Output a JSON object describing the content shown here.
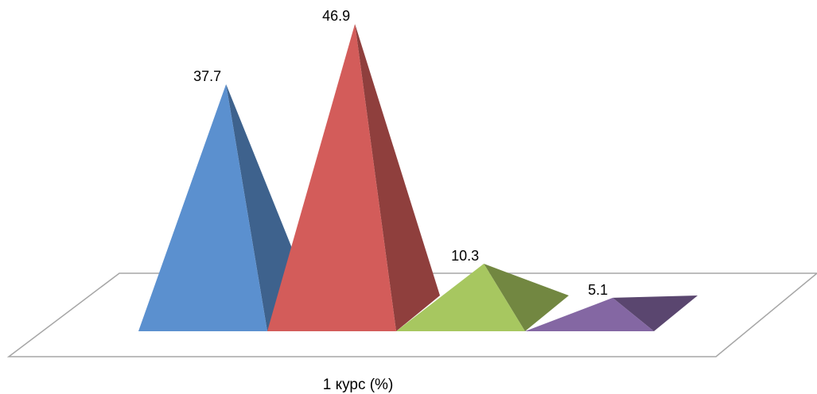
{
  "chart_data": {
    "type": "bar",
    "shape": "3d-pyramid",
    "categories": [
      "1 курс (%)"
    ],
    "series": [
      {
        "values": [
          37.7
        ],
        "color": "#5B90CF"
      },
      {
        "values": [
          46.9
        ],
        "color": "#D35C5A"
      },
      {
        "values": [
          10.3
        ],
        "color": "#A7C760"
      },
      {
        "values": [
          5.1
        ],
        "color": "#8467A3"
      }
    ],
    "data_labels": [
      "37.7",
      "46.9",
      "10.3",
      "5.1"
    ],
    "xlabel": "1 курс (%)",
    "title": "",
    "ylabel": "",
    "ylim": [
      0,
      50
    ],
    "grid": false,
    "legend": "none",
    "floor_color": "#A6A6A6"
  }
}
